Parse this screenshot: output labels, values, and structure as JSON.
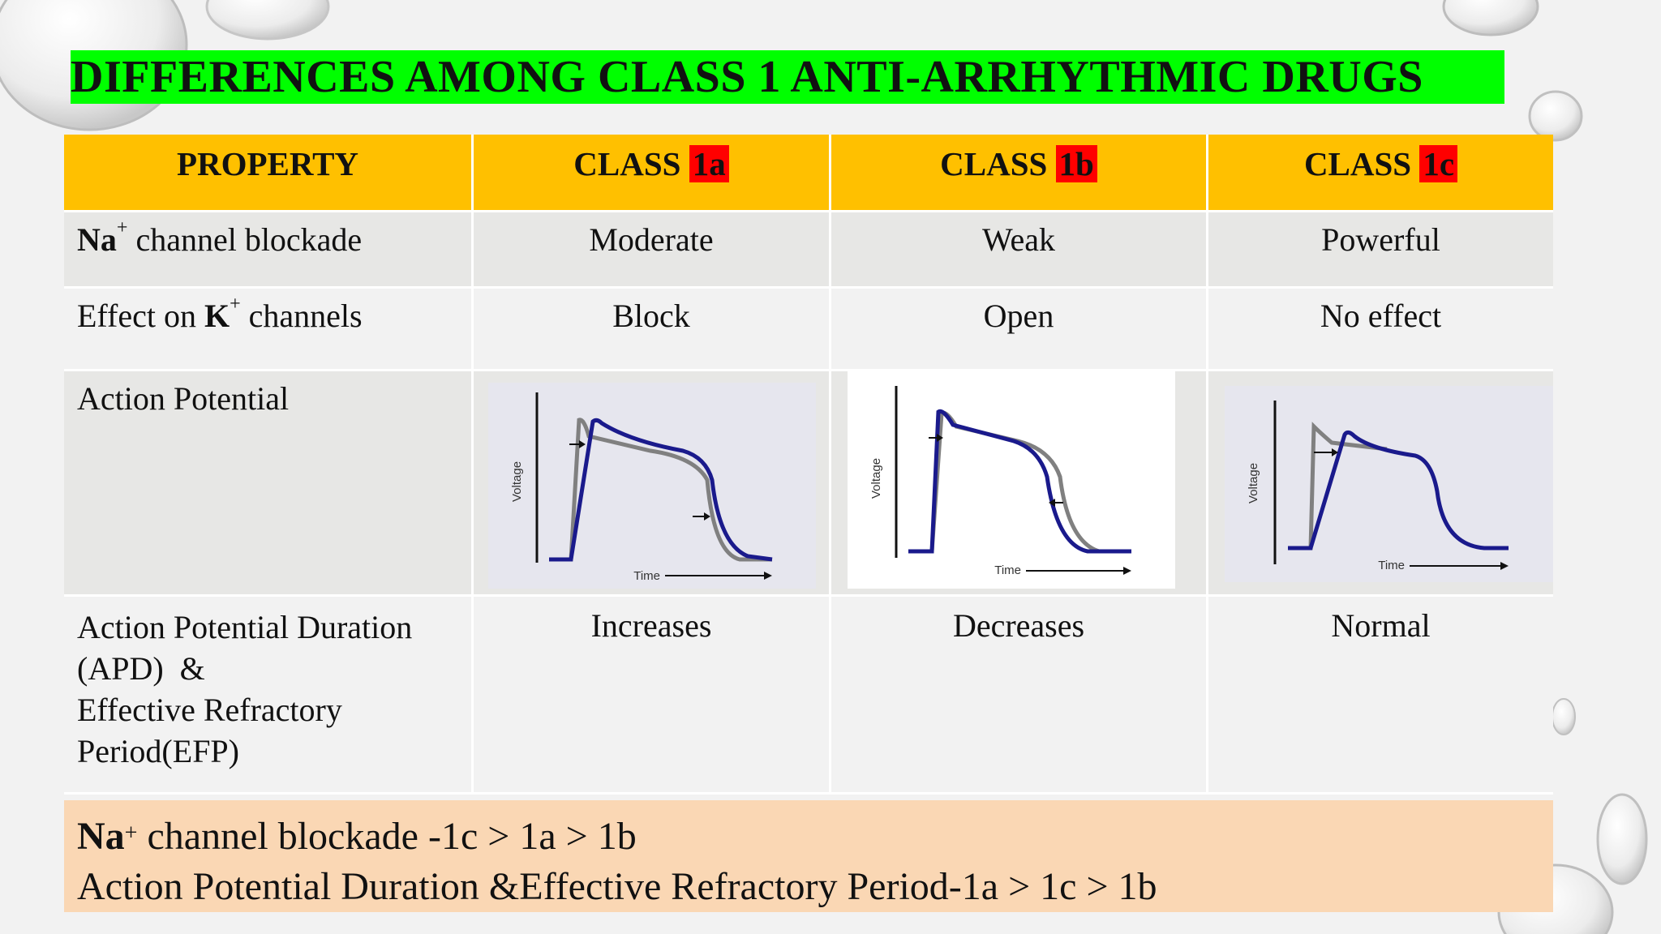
{
  "title": "DIFFERENCES AMONG CLASS 1 ANTI-ARRHYTHMIC DRUGS",
  "header": {
    "property": "PROPERTY",
    "class_word": "CLASS",
    "class_1a": "1a",
    "class_1b": "1b",
    "class_1c": "1c"
  },
  "rows": {
    "na": {
      "ion": "Na",
      "charge": "+",
      "label": "channel blockade",
      "v1a": "Moderate",
      "v1b": "Weak",
      "v1c": "Powerful"
    },
    "k": {
      "prefix": "Effect on",
      "ion": "K",
      "charge": "+",
      "label": "channels",
      "v1a": "Block",
      "v1b": "Open",
      "v1c": "No effect"
    },
    "ap": {
      "label": "Action Potential"
    },
    "apd": {
      "line1": "Action Potential Duration",
      "line2": "(APD)  &",
      "line3": "Effective Refractory",
      "line4": "Period(EFP)",
      "v1a": "Increases",
      "v1b": "Decreases",
      "v1c": "Normal"
    }
  },
  "charts": {
    "ylabel": "Voltage",
    "xlabel": "Time",
    "colors": {
      "baseline": "#808080",
      "drug": "#1a1a8c",
      "panel": "#e6e6ee"
    }
  },
  "summary": {
    "line1_ion": "Na",
    "line1_charge": "+",
    "line1_rest": "channel blockade -1c > 1a > 1b",
    "line2": "Action Potential Duration &Effective Refractory Period-1a > 1c > 1b"
  }
}
